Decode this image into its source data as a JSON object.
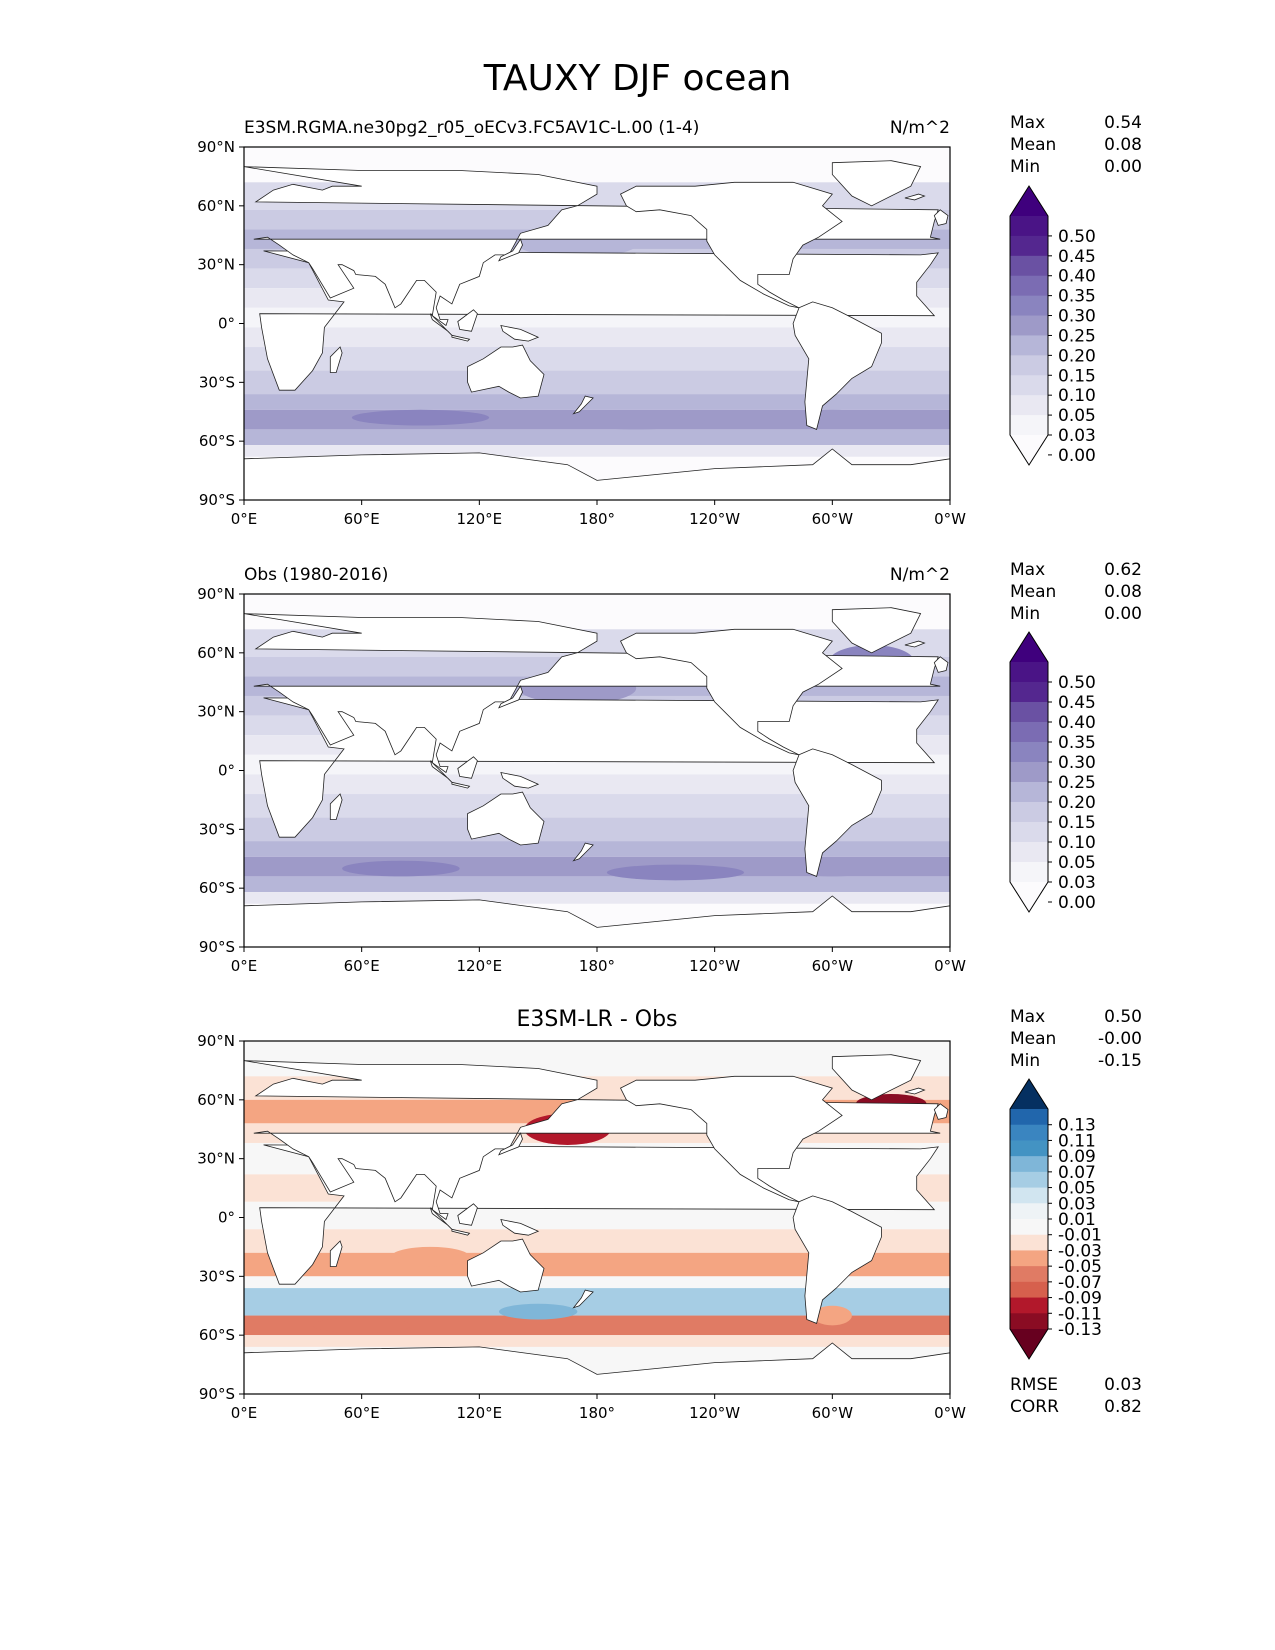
{
  "figure": {
    "title": "TAUXY DJF ocean"
  },
  "panels": [
    {
      "id": "test",
      "title_left": "E3SM.RGMA.ne30pg2_r05_oECv3.FC5AV1C-L.00 (1-4)",
      "title_center": "",
      "title_right": "N/m^2",
      "stats": [
        {
          "k": "Max",
          "v": "0.54"
        },
        {
          "k": "Mean",
          "v": "0.08"
        },
        {
          "k": "Min",
          "v": "0.00"
        }
      ],
      "colorbar": {
        "labels": [
          "0.50",
          "0.45",
          "0.40",
          "0.35",
          "0.30",
          "0.25",
          "0.20",
          "0.15",
          "0.10",
          "0.05",
          "0.03",
          "0.00"
        ],
        "colors": [
          "#3f007d",
          "#4a1486",
          "#54278f",
          "#6a51a3",
          "#7b6cb3",
          "#8a84bf",
          "#9e9ac8",
          "#b6b6d8",
          "#cbcbe3",
          "#dadaeb",
          "#e9e8f2",
          "#f5f5f9",
          "#fcfbfd"
        ]
      }
    },
    {
      "id": "ref",
      "title_left": "Obs (1980-2016)",
      "title_center": "",
      "title_right": "N/m^2",
      "stats": [
        {
          "k": "Max",
          "v": "0.62"
        },
        {
          "k": "Mean",
          "v": "0.08"
        },
        {
          "k": "Min",
          "v": "0.00"
        }
      ],
      "colorbar": {
        "labels": [
          "0.50",
          "0.45",
          "0.40",
          "0.35",
          "0.30",
          "0.25",
          "0.20",
          "0.15",
          "0.10",
          "0.05",
          "0.03",
          "0.00"
        ],
        "colors": [
          "#3f007d",
          "#4a1486",
          "#54278f",
          "#6a51a3",
          "#7b6cb3",
          "#8a84bf",
          "#9e9ac8",
          "#b6b6d8",
          "#cbcbe3",
          "#dadaeb",
          "#e9e8f2",
          "#f5f5f9",
          "#fcfbfd"
        ]
      }
    },
    {
      "id": "diff",
      "title_left": "",
      "title_center": "E3SM-LR - Obs",
      "title_right": "",
      "stats": [
        {
          "k": "Max",
          "v": "0.50"
        },
        {
          "k": "Mean",
          "v": "-0.00"
        },
        {
          "k": "Min",
          "v": "-0.15"
        }
      ],
      "bottom_stats": [
        {
          "k": "RMSE",
          "v": "0.03"
        },
        {
          "k": "CORR",
          "v": "0.82"
        }
      ],
      "colorbar": {
        "labels": [
          "0.13",
          "0.11",
          "0.09",
          "0.07",
          "0.05",
          "0.03",
          "0.01",
          "-0.01",
          "-0.03",
          "-0.05",
          "-0.07",
          "-0.09",
          "-0.11",
          "-0.13"
        ],
        "colors": [
          "#053061",
          "#2166ac",
          "#3a85c0",
          "#4393c3",
          "#7fb6d8",
          "#a6cde4",
          "#d1e5f0",
          "#eef3f6",
          "#f7f7f7",
          "#fbe2d5",
          "#f4a582",
          "#e07b64",
          "#d6604d",
          "#b2182b",
          "#8a0c23",
          "#67001f"
        ]
      }
    }
  ],
  "axes": {
    "lat_ticks": [
      "90°N",
      "60°N",
      "30°N",
      "0°",
      "30°S",
      "60°S",
      "90°S"
    ],
    "lon_ticks": [
      "0°E",
      "60°E",
      "120°E",
      "180°",
      "120°W",
      "60°W",
      "0°W"
    ]
  }
}
